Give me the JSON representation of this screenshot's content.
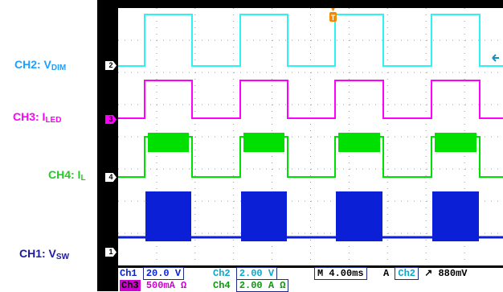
{
  "labels": {
    "ch2": {
      "main": "CH2: V",
      "sub": "DIM",
      "color": "#1ea0ff"
    },
    "ch3": {
      "main": "CH3: I",
      "sub": "LED",
      "color": "#ff00ff"
    },
    "ch4": {
      "main": "CH4: I",
      "sub": "L",
      "color": "#22cc22"
    },
    "ch1": {
      "main": "CH1: V",
      "sub": "SW",
      "color": "#1a1aa0"
    }
  },
  "markers": {
    "ch2": "2",
    "ch3": "3",
    "ch4": "4",
    "ch1": "1",
    "trigger": "T"
  },
  "status": {
    "row1": {
      "ch1_name": "Ch1",
      "ch1_scale": "20.0 V",
      "ch1_icon": "Ω",
      "ch2_name": "Ch2",
      "ch2_scale": "2.00 V",
      "ch2_icon": "Ω",
      "timebase": "M 4.00ms",
      "trig_mode": "A",
      "trig_src": "Ch2",
      "trig_slope": "↗",
      "trig_level": "880mV"
    },
    "row2": {
      "ch3_name": "Ch3",
      "ch3_scale": "500mA Ω",
      "ch3_icon": "Ω",
      "ch4_name": "Ch4",
      "ch4_scale": "2.00 A Ω",
      "ch4_icon": "Ω"
    }
  },
  "colors": {
    "ch1": "#0b1fd6",
    "ch2": "#2ef2f2",
    "ch3": "#ff00ff",
    "ch4": "#00e000",
    "screen_bg": "#ffffff",
    "frame": "#000000",
    "grid_dots": "#9a9a9a",
    "trigger": "#f08a00"
  }
}
